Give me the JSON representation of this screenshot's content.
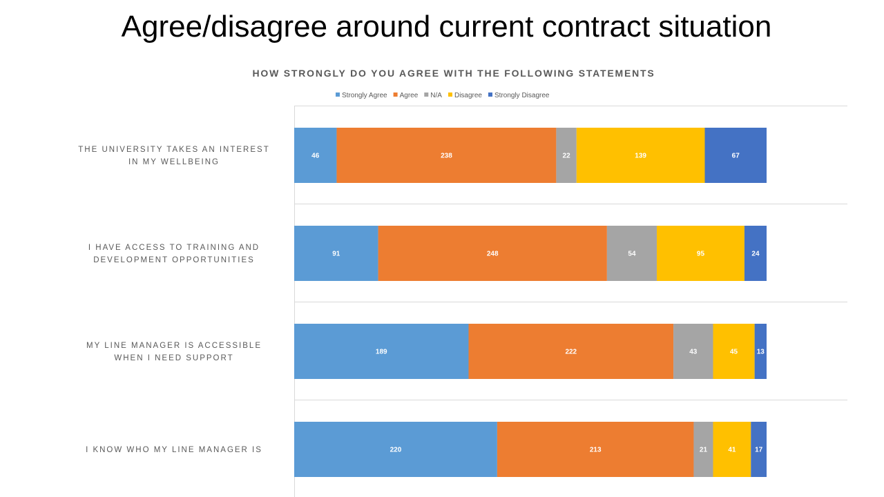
{
  "slide": {
    "title": "Agree/disagree around current contract situation"
  },
  "chart_data": {
    "type": "bar",
    "orientation": "horizontal",
    "stacked": true,
    "title": "HOW STRONGLY DO YOU AGREE WITH THE FOLLOWING STATEMENTS",
    "legend_position": "top",
    "grid": false,
    "categories": [
      "THE UNIVERSITY TAKES AN INTEREST IN MY WELLBEING",
      "I HAVE ACCESS TO TRAINING AND DEVELOPMENT OPPORTUNITIES",
      "MY LINE MANAGER IS ACCESSIBLE WHEN I NEED SUPPORT",
      "I KNOW WHO MY LINE MANAGER IS"
    ],
    "series": [
      {
        "name": "Strongly Agree",
        "color": "#5B9BD5",
        "values": [
          46,
          91,
          189,
          220
        ]
      },
      {
        "name": "Agree",
        "color": "#ED7D31",
        "values": [
          238,
          248,
          222,
          213
        ]
      },
      {
        "name": "N/A",
        "color": "#A5A5A5",
        "values": [
          22,
          54,
          43,
          21
        ]
      },
      {
        "name": "Disagree",
        "color": "#FFC000",
        "values": [
          139,
          95,
          45,
          41
        ]
      },
      {
        "name": "Strongly Disagree",
        "color": "#4472C4",
        "values": [
          67,
          24,
          13,
          17
        ]
      }
    ]
  }
}
